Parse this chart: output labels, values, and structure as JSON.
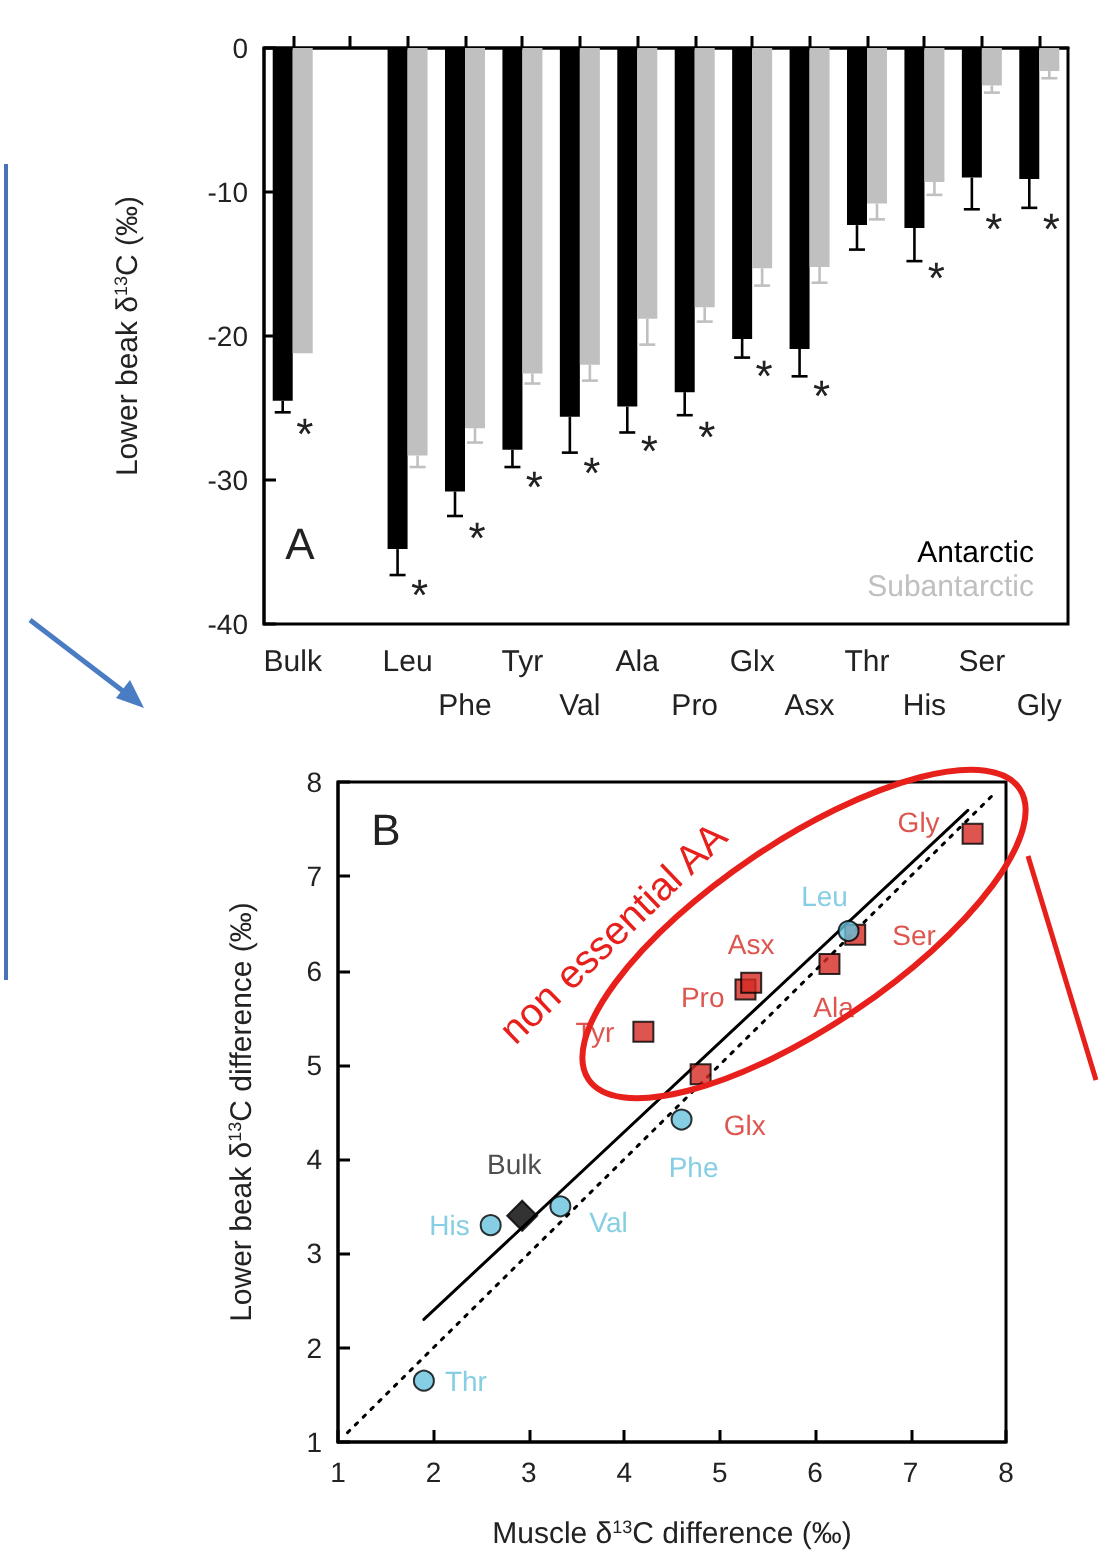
{
  "chart_data": [
    {
      "type": "bar",
      "ylabel": "Lower beak δ$^{13}$C (‰)",
      "categories": [
        "Bulk",
        null,
        "Leu",
        "Phe",
        "Tyr",
        "Val",
        "Ala",
        "Pro",
        "Glx",
        "Asx",
        "Thr",
        "His",
        "Ser",
        "Gly"
      ],
      "series": [
        {
          "name": "Antarctic",
          "color": "#000000",
          "values": [
            -24.5,
            null,
            -34.8,
            -30.8,
            -27.9,
            -25.6,
            -24.9,
            -23.9,
            -20.2,
            -20.9,
            -12.3,
            -12.5,
            -9.0,
            -9.1
          ],
          "errors": [
            [
              -25.3,
              -24.5
            ],
            null,
            [
              -36.6,
              -34.8
            ],
            [
              -32.5,
              -30.8
            ],
            [
              -29.1,
              -27.9
            ],
            [
              -28.1,
              -25.6
            ],
            [
              -26.7,
              -24.9
            ],
            [
              -25.5,
              -23.9
            ],
            [
              -21.5,
              -20.2
            ],
            [
              -22.8,
              -20.9
            ],
            [
              -14.0,
              -12.3
            ],
            [
              -14.8,
              -12.5
            ],
            [
              -11.2,
              -9.0
            ],
            [
              -11.1,
              -9.1
            ]
          ]
        },
        {
          "name": "Subantarctic",
          "color": "#c0c0c0",
          "values": [
            -21.2,
            null,
            -28.3,
            -26.4,
            -22.6,
            -22.0,
            -18.8,
            -18.0,
            -15.3,
            -15.2,
            -10.8,
            -9.3,
            -2.6,
            -1.6
          ],
          "errors": [
            null,
            null,
            [
              -29.1,
              -28.3
            ],
            [
              -27.4,
              -26.4
            ],
            [
              -23.3,
              -22.6
            ],
            [
              -23.1,
              -22.0
            ],
            [
              -20.6,
              -18.8
            ],
            [
              -19.0,
              -18.0
            ],
            [
              -16.5,
              -15.3
            ],
            [
              -16.3,
              -15.2
            ],
            [
              -11.9,
              -10.8
            ],
            [
              -10.2,
              -9.3
            ],
            [
              -3.1,
              -2.6
            ],
            [
              -2.1,
              -1.6
            ]
          ]
        }
      ],
      "ylim": [
        -40,
        0
      ],
      "yticks": [
        -40,
        -30,
        -20,
        -10,
        0
      ],
      "legend": "bottom right",
      "annotations": [
        "A",
        "*",
        "*",
        "*",
        "*",
        "*",
        "*",
        "*",
        "*",
        "*",
        "*",
        "*",
        "*"
      ]
    },
    {
      "type": "scatter",
      "xlabel": "Muscle δ$^{13}$C difference (‰)",
      "ylabel": "Lower beak δ$^{13}$C difference (‰)",
      "xlim": [
        1,
        8
      ],
      "xticks": [
        1,
        2,
        3,
        4,
        5,
        6,
        7,
        8
      ],
      "ylim": [
        1,
        8
      ],
      "yticks": [
        1,
        2,
        3,
        4,
        5,
        6,
        7,
        8
      ],
      "series": [
        {
          "type": "line",
          "color": "#000000",
          "x": [
            1.1,
            7.9
          ],
          "values": [
            1.1,
            7.9
          ],
          "marker": "none",
          "line_style": "dotted"
        },
        {
          "type": "line",
          "color": "#000000",
          "x": [
            1.9,
            7.6
          ],
          "values": [
            2.3,
            7.7
          ],
          "marker": "none",
          "line_style": "solid"
        },
        {
          "color": "#d42a22",
          "marker": "square",
          "x": [
            4.2,
            4.8,
            5.27,
            5.33,
            6.15,
            6.42,
            7.65
          ],
          "values": [
            5.35,
            4.9,
            5.8,
            5.87,
            6.07,
            6.38,
            7.45
          ],
          "value_labels": [
            "Tyr",
            "Glx",
            "Pro",
            "Asx",
            "Ala",
            "Ser",
            "Gly"
          ]
        },
        {
          "color": "#66c2dc",
          "marker": "circle",
          "x": [
            1.9,
            2.6,
            3.33,
            4.6,
            6.35
          ],
          "values": [
            1.65,
            3.3,
            3.5,
            4.42,
            6.42
          ],
          "value_labels": [
            "Thr",
            "His",
            "Val",
            "Phe",
            "Leu"
          ]
        },
        {
          "color": "#000000",
          "marker": "diamond",
          "x": [
            2.93
          ],
          "values": [
            3.4
          ],
          "value_labels": [
            "Bulk"
          ]
        }
      ],
      "annotations": [
        "B",
        "non essential AA"
      ]
    }
  ]
}
